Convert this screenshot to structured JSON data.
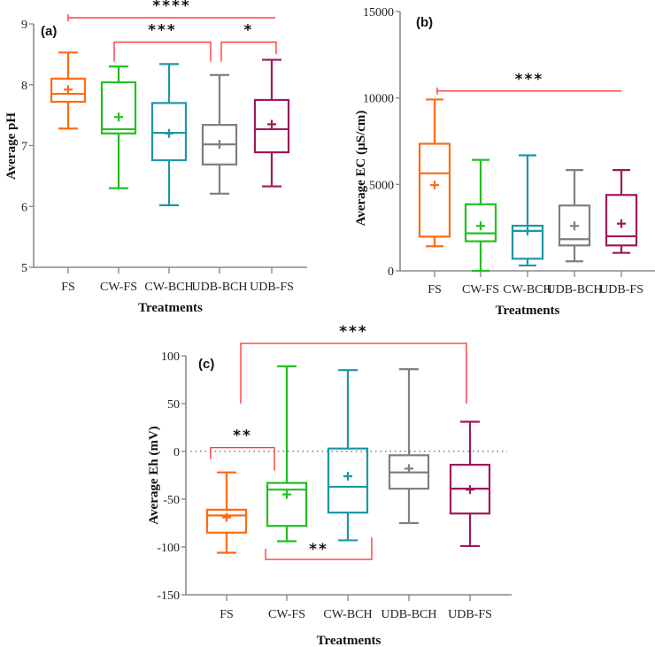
{
  "colors": {
    "FS": "#ff6a13",
    "CW-FS": "#22c11e",
    "CW-BCH": "#1e96a8",
    "UDB-BCH": "#7f7f7f",
    "UDB-FS": "#a0185a",
    "bracket": "#ff3b3b",
    "axis": "#8a8a8a"
  },
  "chart_data": [
    {
      "type": "box",
      "panel_label": "(a)",
      "xlabel": "Treatments",
      "ylabel": "Average pH",
      "ylim": [
        5,
        9
      ],
      "yticks": [
        "5",
        "6",
        "7",
        "8",
        "9"
      ],
      "ytick_values": [
        5,
        6,
        7,
        8,
        9
      ],
      "categories": [
        "FS",
        "CW-FS",
        "CW-BCH",
        "UDB-BCH",
        "UDB-FS"
      ],
      "boxes": [
        {
          "min": 7.28,
          "q1": 7.72,
          "median": 7.85,
          "q3": 8.1,
          "max": 8.53,
          "mean": 7.92
        },
        {
          "min": 6.3,
          "q1": 7.2,
          "median": 7.27,
          "q3": 8.04,
          "max": 8.3,
          "mean": 7.47
        },
        {
          "min": 6.02,
          "q1": 6.76,
          "median": 7.21,
          "q3": 7.7,
          "max": 8.34,
          "mean": 7.2
        },
        {
          "min": 6.21,
          "q1": 6.69,
          "median": 7.02,
          "q3": 7.34,
          "max": 8.16,
          "mean": 7.02
        },
        {
          "min": 6.33,
          "q1": 6.89,
          "median": 7.27,
          "q3": 7.75,
          "max": 8.41,
          "mean": 7.35
        }
      ],
      "significance": [
        {
          "from": 0,
          "to": 4,
          "label": "****",
          "y": 9.1,
          "style": "left-tick"
        },
        {
          "from": 1,
          "to": 3,
          "label": "***",
          "y": 8.7,
          "drop_left": 8.38,
          "drop_right": 8.38
        },
        {
          "from": 3,
          "to": 4,
          "label": "*",
          "y": 8.7,
          "drop_left": 8.38,
          "drop_right": 8.5
        }
      ]
    },
    {
      "type": "box",
      "panel_label": "(b)",
      "xlabel": "Treatments",
      "ylabel": "Average EC (µS/cm)",
      "ylim": [
        0,
        15000
      ],
      "yticks": [
        "0",
        "5000",
        "10000",
        "15000"
      ],
      "ytick_values": [
        0,
        5000,
        10000,
        15000
      ],
      "categories": [
        "FS",
        "CW-FS",
        "CW-BCH",
        "UDB-BCH",
        "UDB-FS"
      ],
      "boxes": [
        {
          "min": 1420,
          "q1": 1980,
          "median": 5640,
          "q3": 7350,
          "max": 9910,
          "mean": 4960
        },
        {
          "min": 0,
          "q1": 1710,
          "median": 2170,
          "q3": 3850,
          "max": 6420,
          "mean": 2600
        },
        {
          "min": 310,
          "q1": 700,
          "median": 2310,
          "q3": 2610,
          "max": 6680,
          "mean": 2300
        },
        {
          "min": 550,
          "q1": 1470,
          "median": 1830,
          "q3": 3780,
          "max": 5830,
          "mean": 2600
        },
        {
          "min": 1040,
          "q1": 1470,
          "median": 2000,
          "q3": 4390,
          "max": 5830,
          "mean": 2730
        }
      ],
      "significance": [
        {
          "from": 0,
          "to": 4,
          "label": "***",
          "y": 10400,
          "style": "left-tick"
        }
      ]
    },
    {
      "type": "box",
      "panel_label": "(c)",
      "xlabel": "Treatments",
      "ylabel": "Average Eh (mV)",
      "ylim": [
        -150,
        100
      ],
      "yticks": [
        "-150",
        "-100",
        "-50",
        "0",
        "50",
        "100"
      ],
      "ytick_values": [
        -150,
        -100,
        -50,
        0,
        50,
        100
      ],
      "reference_line": 0,
      "categories": [
        "FS",
        "CW-FS",
        "CW-BCH",
        "UDB-BCH",
        "UDB-FS"
      ],
      "boxes": [
        {
          "min": -106,
          "q1": -85,
          "median": -67,
          "q3": -61,
          "max": -22,
          "mean": -69
        },
        {
          "min": -94,
          "q1": -78,
          "median": -40,
          "q3": -33,
          "max": 89,
          "mean": -45
        },
        {
          "min": -93,
          "q1": -64,
          "median": -37,
          "q3": 3,
          "max": 85,
          "mean": -26
        },
        {
          "min": -75,
          "q1": -39,
          "median": -22,
          "q3": -4,
          "max": 86,
          "mean": -18
        },
        {
          "min": -99,
          "q1": -65,
          "median": -39,
          "q3": -14,
          "max": 31,
          "mean": -40
        }
      ],
      "significance": [
        {
          "from": 0,
          "to": 4,
          "label": "***",
          "y": 113,
          "drop_left": 50,
          "drop_right": 50
        },
        {
          "from": 0,
          "to": 1,
          "label": "**",
          "y": 4,
          "drop_left": -8,
          "drop_right": -20
        },
        {
          "from": 1,
          "to": 2,
          "label": "**",
          "y": -113,
          "drop_left": -102,
          "drop_right": -90,
          "below": true
        }
      ]
    }
  ]
}
